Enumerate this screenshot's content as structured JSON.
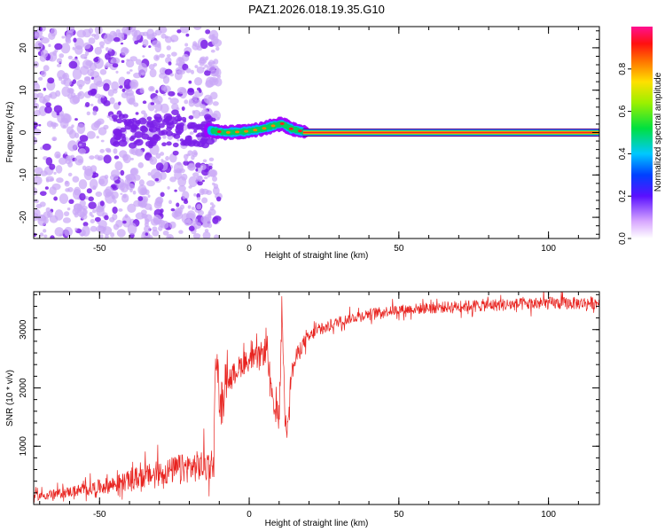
{
  "title": "PAZ1.2026.018.19.35.G10",
  "colors": {
    "snr_line": "#e8231f",
    "band_core": "#ff2020",
    "band_mid": "#00d060",
    "band_outer": "#a000ff",
    "noise_light": "#c9a6f7",
    "noise_dark": "#7a1fe8"
  },
  "chart_data": [
    {
      "type": "heatmap",
      "title": "PAZ1.2026.018.19.35.G10",
      "xlabel": "Height of straight line (km)",
      "ylabel": "Frequency (Hz)",
      "xlim": [
        -72,
        117
      ],
      "ylim": [
        -25,
        25
      ],
      "x_ticks": [
        -50,
        0,
        50,
        100
      ],
      "x_tick_labels": [
        "-50",
        "0",
        "50",
        "100"
      ],
      "y_ticks": [
        -20,
        -10,
        0,
        10,
        20
      ],
      "y_tick_labels": [
        "-20",
        "-10",
        "0",
        "10",
        "20"
      ],
      "colorbar": {
        "label": "Normalized spectral amplitude",
        "range": [
          0,
          1
        ],
        "ticks": [
          0.0,
          0.2,
          0.4,
          0.6,
          0.8
        ],
        "tick_labels": [
          "0.0",
          "0.2",
          "0.4",
          "0.6",
          "0.8"
        ]
      },
      "regions": [
        {
          "description": "scattered noise",
          "x_range": [
            -72,
            -13
          ],
          "freq_range": [
            -25,
            25
          ],
          "amplitude": 0.1
        },
        {
          "description": "transition band",
          "x_range": [
            -13,
            18
          ],
          "center_freq": 0.5,
          "amplitude": 0.45
        },
        {
          "description": "stable carrier",
          "x_range": [
            18,
            117
          ],
          "center_freq": 0.0,
          "amplitude": 0.95
        }
      ],
      "band_centers": [
        {
          "x": -13,
          "f": 0.5
        },
        {
          "x": -8,
          "f": 0.0
        },
        {
          "x": -2,
          "f": 0.2
        },
        {
          "x": 4,
          "f": 0.8
        },
        {
          "x": 8,
          "f": 1.6
        },
        {
          "x": 11,
          "f": 2.1
        },
        {
          "x": 14,
          "f": 0.9
        },
        {
          "x": 18,
          "f": 0.2
        },
        {
          "x": 30,
          "f": 0.0
        },
        {
          "x": 117,
          "f": 0.0
        }
      ]
    },
    {
      "type": "line",
      "xlabel": "Height of straight line (km)",
      "ylabel": "SNR (10 * v/v)",
      "xlim": [
        -72,
        117
      ],
      "ylim": [
        0,
        3650
      ],
      "x_ticks": [
        -50,
        0,
        50,
        100
      ],
      "x_tick_labels": [
        "-50",
        "0",
        "50",
        "100"
      ],
      "y_ticks": [
        1000,
        2000,
        3000
      ],
      "y_tick_labels": [
        "1000",
        "2000",
        "3000"
      ],
      "series": [
        {
          "name": "SNR",
          "x": [
            -72,
            -65,
            -60,
            -55,
            -50,
            -45,
            -40,
            -35,
            -30,
            -25,
            -20,
            -15,
            -12,
            -11,
            -10,
            -9,
            -8,
            -6,
            -4,
            -2,
            0,
            3,
            6,
            8,
            10,
            11,
            12,
            13,
            14,
            16,
            18,
            20,
            22,
            25,
            28,
            30,
            35,
            40,
            45,
            50,
            60,
            70,
            80,
            90,
            100,
            110,
            117
          ],
          "y": [
            130,
            170,
            210,
            240,
            290,
            330,
            400,
            460,
            510,
            570,
            610,
            640,
            660,
            2700,
            1800,
            1500,
            2200,
            2150,
            2300,
            2400,
            2450,
            2500,
            2650,
            1600,
            1500,
            3300,
            1400,
            1500,
            2200,
            2550,
            2750,
            2850,
            2950,
            3000,
            3080,
            3130,
            3200,
            3260,
            3300,
            3330,
            3360,
            3390,
            3410,
            3420,
            3440,
            3440,
            3450
          ],
          "noise": [
            70,
            80,
            90,
            110,
            130,
            150,
            170,
            200,
            220,
            240,
            260,
            280,
            300,
            400,
            300,
            250,
            220,
            200,
            200,
            200,
            180,
            200,
            250,
            200,
            220,
            200,
            200,
            200,
            180,
            150,
            130,
            120,
            110,
            100,
            100,
            90,
            90,
            90,
            90,
            90,
            100,
            100,
            110,
            110,
            110,
            110,
            110
          ]
        }
      ]
    }
  ]
}
